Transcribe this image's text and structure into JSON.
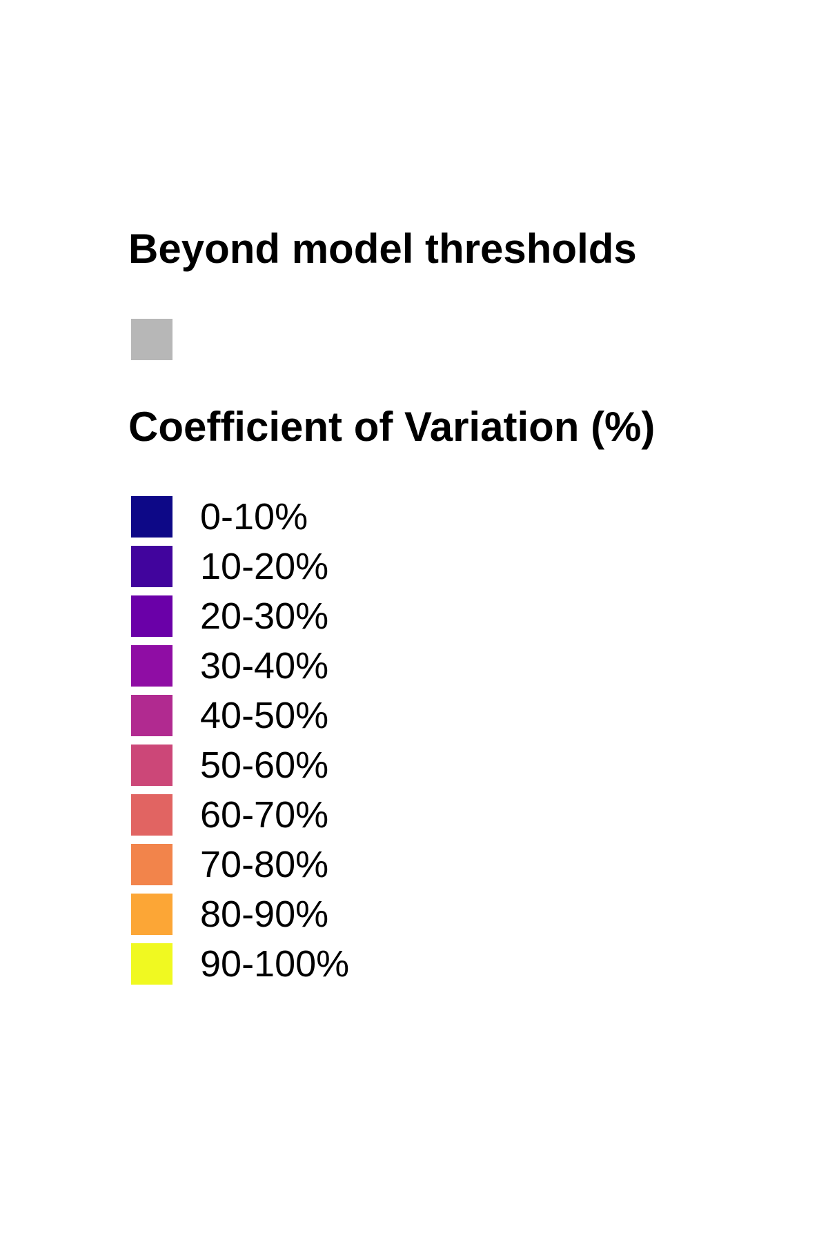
{
  "chart_data": {
    "type": "legend",
    "sections": [
      {
        "title": "Beyond model thresholds",
        "entries": [
          {
            "label": "",
            "color": "#b7b7b7"
          }
        ]
      },
      {
        "title": "Coefficient of Variation (%)",
        "entries": [
          {
            "label": "0-10%",
            "color": "#0d0887"
          },
          {
            "label": "10-20%",
            "color": "#41049d"
          },
          {
            "label": "20-30%",
            "color": "#6a00a8"
          },
          {
            "label": "30-40%",
            "color": "#8f0da4"
          },
          {
            "label": "40-50%",
            "color": "#b12a90"
          },
          {
            "label": "50-60%",
            "color": "#cc4778"
          },
          {
            "label": "60-70%",
            "color": "#e16462"
          },
          {
            "label": "70-80%",
            "color": "#f2844b"
          },
          {
            "label": "80-90%",
            "color": "#fca636"
          },
          {
            "label": "90-100%",
            "color": "#f0f921"
          }
        ]
      }
    ]
  }
}
